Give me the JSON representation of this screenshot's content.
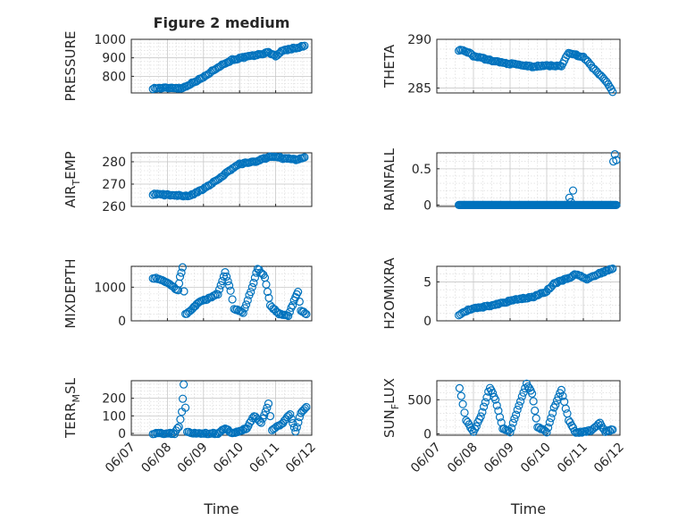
{
  "chart_data": [
    {
      "type": "scatter",
      "title": "Figure 2 medium",
      "ylabel": "PRESSURE",
      "ylim": [
        710,
        1000
      ],
      "yticks": [
        800,
        900,
        1000
      ],
      "xlim": [
        0,
        5
      ],
      "xticklabels": [
        "06/07",
        "06/08",
        "06/09",
        "06/10",
        "06/11",
        "06/12"
      ],
      "xlabel": "",
      "marker": "circle",
      "color": "#0072BD",
      "anchors": [
        [
          0.6,
          735
        ],
        [
          1.2,
          738
        ],
        [
          1.4,
          735
        ],
        [
          1.6,
          755
        ],
        [
          2.0,
          795
        ],
        [
          2.4,
          850
        ],
        [
          2.8,
          890
        ],
        [
          3.2,
          905
        ],
        [
          3.6,
          920
        ],
        [
          3.8,
          930
        ],
        [
          4.0,
          910
        ],
        [
          4.2,
          940
        ],
        [
          4.6,
          955
        ],
        [
          4.8,
          965
        ]
      ]
    },
    {
      "type": "scatter",
      "title": "",
      "ylabel": "THETA",
      "ylim": [
        284.5,
        290
      ],
      "yticks": [
        285,
        290
      ],
      "xlim": [
        0,
        5
      ],
      "xticklabels": [
        "06/07",
        "06/08",
        "06/09",
        "06/10",
        "06/11",
        "06/12"
      ],
      "xlabel": "",
      "marker": "circle",
      "color": "#0072BD",
      "anchors": [
        [
          0.6,
          288.9
        ],
        [
          0.8,
          288.8
        ],
        [
          1.0,
          288.3
        ],
        [
          1.4,
          287.9
        ],
        [
          1.8,
          287.6
        ],
        [
          2.2,
          287.4
        ],
        [
          2.6,
          287.2
        ],
        [
          3.0,
          287.3
        ],
        [
          3.4,
          287.3
        ],
        [
          3.6,
          288.6
        ],
        [
          4.0,
          288.2
        ],
        [
          4.3,
          286.9
        ],
        [
          4.6,
          285.8
        ],
        [
          4.8,
          284.6
        ]
      ]
    },
    {
      "type": "scatter",
      "title": "",
      "ylabel": "AIR_TEMP",
      "ylabel_main": "AIR",
      "ylabel_sub": "T",
      "ylabel_rest": "EMP",
      "ylim": [
        260,
        284
      ],
      "yticks": [
        260,
        270,
        280
      ],
      "xlim": [
        0,
        5
      ],
      "xticklabels": [
        "06/07",
        "06/08",
        "06/09",
        "06/10",
        "06/11",
        "06/12"
      ],
      "xlabel": "",
      "marker": "circle",
      "color": "#0072BD",
      "anchors": [
        [
          0.6,
          265.5
        ],
        [
          1.0,
          265.2
        ],
        [
          1.4,
          264.8
        ],
        [
          1.6,
          264.5
        ],
        [
          2.0,
          268.0
        ],
        [
          2.4,
          272.0
        ],
        [
          2.8,
          277.0
        ],
        [
          3.0,
          279.0
        ],
        [
          3.4,
          280.0
        ],
        [
          3.8,
          282.0
        ],
        [
          4.0,
          282.5
        ],
        [
          4.2,
          281.5
        ],
        [
          4.6,
          281.0
        ],
        [
          4.8,
          282.0
        ]
      ]
    },
    {
      "type": "scatter",
      "title": "",
      "ylabel": "RAINFALL",
      "ylim": [
        -0.02,
        0.72
      ],
      "yticks": [
        0,
        0.5
      ],
      "xlim": [
        0,
        5
      ],
      "xticklabels": [
        "06/07",
        "06/08",
        "06/09",
        "06/10",
        "06/11",
        "06/12"
      ],
      "xlabel": "",
      "marker": "circle",
      "color": "#0072BD",
      "points": [
        [
          3.62,
          0.1
        ],
        [
          3.72,
          0.2
        ],
        [
          3.66,
          0.04
        ],
        [
          4.82,
          0.6
        ],
        [
          4.86,
          0.7
        ],
        [
          4.9,
          0.62
        ]
      ],
      "base": {
        "x0": 0.6,
        "x1": 4.9,
        "y": 0
      }
    },
    {
      "type": "scatter",
      "title": "",
      "ylabel": "MIXDEPTH",
      "ylim": [
        0,
        1620
      ],
      "yticks": [
        0,
        1000
      ],
      "xlim": [
        0,
        5
      ],
      "xticklabels": [
        "06/07",
        "06/08",
        "06/09",
        "06/10",
        "06/11",
        "06/12"
      ],
      "xlabel": "",
      "marker": "circle",
      "color": "#0072BD",
      "anchors": [
        [
          0.6,
          1280
        ],
        [
          0.9,
          1200
        ],
        [
          1.1,
          1050
        ],
        [
          1.3,
          900
        ],
        [
          1.35,
          1300
        ],
        [
          1.42,
          1580
        ],
        [
          1.5,
          200
        ],
        [
          1.7,
          350
        ],
        [
          1.85,
          550
        ],
        [
          2.1,
          650
        ],
        [
          2.4,
          800
        ],
        [
          2.6,
          1450
        ],
        [
          2.75,
          900
        ],
        [
          2.85,
          350
        ],
        [
          3.1,
          250
        ],
        [
          3.35,
          1000
        ],
        [
          3.5,
          1550
        ],
        [
          3.7,
          1300
        ],
        [
          3.85,
          450
        ],
        [
          4.1,
          200
        ],
        [
          4.35,
          150
        ],
        [
          4.55,
          700
        ],
        [
          4.62,
          850
        ],
        [
          4.7,
          300
        ],
        [
          4.85,
          200
        ]
      ]
    },
    {
      "type": "scatter",
      "title": "",
      "ylabel": "H2OMIXRA",
      "ylim": [
        0,
        7
      ],
      "yticks": [
        0,
        5
      ],
      "xlim": [
        0,
        5
      ],
      "xticklabels": [
        "06/07",
        "06/08",
        "06/09",
        "06/10",
        "06/11",
        "06/12"
      ],
      "xlabel": "",
      "marker": "circle",
      "color": "#0072BD",
      "anchors": [
        [
          0.6,
          0.8
        ],
        [
          0.9,
          1.5
        ],
        [
          1.3,
          1.8
        ],
        [
          1.8,
          2.3
        ],
        [
          2.2,
          2.8
        ],
        [
          2.6,
          3.0
        ],
        [
          3.0,
          3.8
        ],
        [
          3.2,
          4.8
        ],
        [
          3.6,
          5.5
        ],
        [
          3.8,
          6.0
        ],
        [
          4.1,
          5.3
        ],
        [
          4.4,
          6.0
        ],
        [
          4.8,
          6.7
        ]
      ]
    },
    {
      "type": "scatter",
      "title": "",
      "ylabel": "TERR_MSL",
      "ylabel_main": "TERR",
      "ylabel_sub": "M",
      "ylabel_rest": "SL",
      "ylim": [
        -10,
        300
      ],
      "yticks": [
        0,
        100,
        200
      ],
      "xlim": [
        0,
        5
      ],
      "xticklabels": [
        "06/07",
        "06/08",
        "06/09",
        "06/10",
        "06/11",
        "06/12"
      ],
      "xlabel": "Time",
      "marker": "circle",
      "color": "#0072BD",
      "anchors": [
        [
          0.6,
          0
        ],
        [
          1.2,
          0
        ],
        [
          1.32,
          40
        ],
        [
          1.4,
          120
        ],
        [
          1.45,
          280
        ],
        [
          1.55,
          10
        ],
        [
          1.8,
          0
        ],
        [
          2.4,
          0
        ],
        [
          2.6,
          30
        ],
        [
          2.8,
          0
        ],
        [
          3.2,
          30
        ],
        [
          3.4,
          100
        ],
        [
          3.6,
          60
        ],
        [
          3.8,
          170
        ],
        [
          3.9,
          20
        ],
        [
          4.2,
          60
        ],
        [
          4.4,
          110
        ],
        [
          4.55,
          10
        ],
        [
          4.7,
          120
        ],
        [
          4.85,
          150
        ]
      ]
    },
    {
      "type": "scatter",
      "title": "",
      "ylabel": "SUN_FLUX",
      "ylabel_main": "SUN",
      "ylabel_sub": "F",
      "ylabel_rest": "LUX",
      "ylim": [
        -20,
        780
      ],
      "yticks": [
        0,
        500
      ],
      "xlim": [
        0,
        5
      ],
      "xticklabels": [
        "06/07",
        "06/08",
        "06/09",
        "06/10",
        "06/11",
        "06/12"
      ],
      "xlabel": "Time",
      "marker": "circle",
      "color": "#0072BD",
      "anchors": [
        [
          0.62,
          680
        ],
        [
          0.8,
          200
        ],
        [
          1.0,
          30
        ],
        [
          1.2,
          250
        ],
        [
          1.45,
          680
        ],
        [
          1.6,
          500
        ],
        [
          1.8,
          80
        ],
        [
          2.0,
          30
        ],
        [
          2.2,
          350
        ],
        [
          2.45,
          730
        ],
        [
          2.6,
          600
        ],
        [
          2.75,
          100
        ],
        [
          3.0,
          30
        ],
        [
          3.2,
          380
        ],
        [
          3.4,
          650
        ],
        [
          3.6,
          200
        ],
        [
          3.8,
          10
        ],
        [
          4.2,
          50
        ],
        [
          4.45,
          160
        ],
        [
          4.6,
          30
        ],
        [
          4.8,
          60
        ]
      ]
    }
  ]
}
